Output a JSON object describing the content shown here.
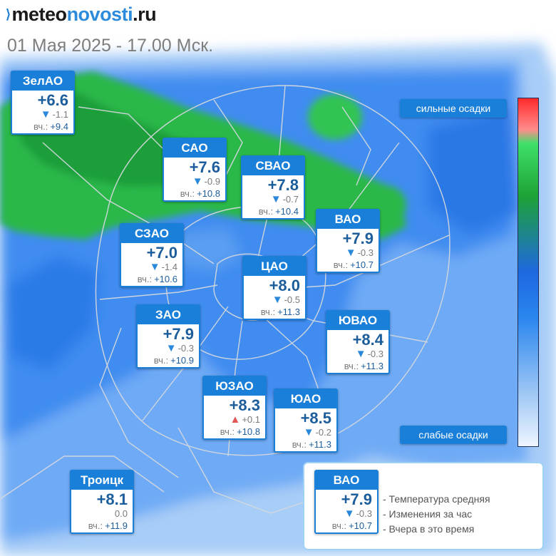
{
  "header": {
    "logo": {
      "part1": "meteo",
      "part2": "novosti",
      "part3": ".ru"
    },
    "datetime": "01 Мая 2025 - 17.00 Мск."
  },
  "scale": {
    "top_label": "сильные осадки",
    "bottom_label": "слабые осадки"
  },
  "districts": [
    {
      "id": "zelao",
      "name": "ЗелАО",
      "temp": "+6.6",
      "trend": "down",
      "change": "-1.1",
      "yesterday_label": "вч.:",
      "yesterday": "+9.4"
    },
    {
      "id": "sao",
      "name": "САО",
      "temp": "+7.6",
      "trend": "down",
      "change": "-0.9",
      "yesterday_label": "вч.:",
      "yesterday": "+10.8"
    },
    {
      "id": "svao",
      "name": "СВАО",
      "temp": "+7.8",
      "trend": "down",
      "change": "-0.7",
      "yesterday_label": "вч.:",
      "yesterday": "+10.4"
    },
    {
      "id": "vao",
      "name": "ВАО",
      "temp": "+7.9",
      "trend": "down",
      "change": "-0.3",
      "yesterday_label": "вч.:",
      "yesterday": "+10.7"
    },
    {
      "id": "szao",
      "name": "СЗАО",
      "temp": "+7.0",
      "trend": "down",
      "change": "-1.4",
      "yesterday_label": "вч.:",
      "yesterday": "+10.6"
    },
    {
      "id": "cao",
      "name": "ЦАО",
      "temp": "+8.0",
      "trend": "down",
      "change": "-0.5",
      "yesterday_label": "вч.:",
      "yesterday": "+11.3"
    },
    {
      "id": "zao",
      "name": "ЗАО",
      "temp": "+7.9",
      "trend": "down",
      "change": "-0.3",
      "yesterday_label": "вч.:",
      "yesterday": "+10.9"
    },
    {
      "id": "yuvao",
      "name": "ЮВАО",
      "temp": "+8.4",
      "trend": "down",
      "change": "-0.3",
      "yesterday_label": "вч.:",
      "yesterday": "+11.3"
    },
    {
      "id": "yuzao",
      "name": "ЮЗАО",
      "temp": "+8.3",
      "trend": "up",
      "change": "+0.1",
      "yesterday_label": "вч.:",
      "yesterday": "+10.8"
    },
    {
      "id": "yuao",
      "name": "ЮАО",
      "temp": "+8.5",
      "trend": "down",
      "change": "-0.2",
      "yesterday_label": "вч.:",
      "yesterday": "+11.3"
    },
    {
      "id": "troitsk",
      "name": "Троицк",
      "temp": "+8.1",
      "trend": "none",
      "change": "0.0",
      "yesterday_label": "вч.:",
      "yesterday": "+11.9"
    }
  ],
  "legend": {
    "sample": {
      "name": "ВАО",
      "temp": "+7.9",
      "trend": "down",
      "change": "-0.3",
      "yesterday_label": "вч.:",
      "yesterday": "+10.7"
    },
    "lines": [
      "- Температура средняя",
      "- Изменения за час",
      "- Вчера в это время"
    ]
  },
  "colors": {
    "accent": "#1a7fd8",
    "temp_text": "#1c5d9b",
    "precip_light": "#3d8cf0",
    "precip_heavy": "#1fae3a",
    "trend_down": "#2a87d9",
    "trend_up": "#e05757"
  }
}
